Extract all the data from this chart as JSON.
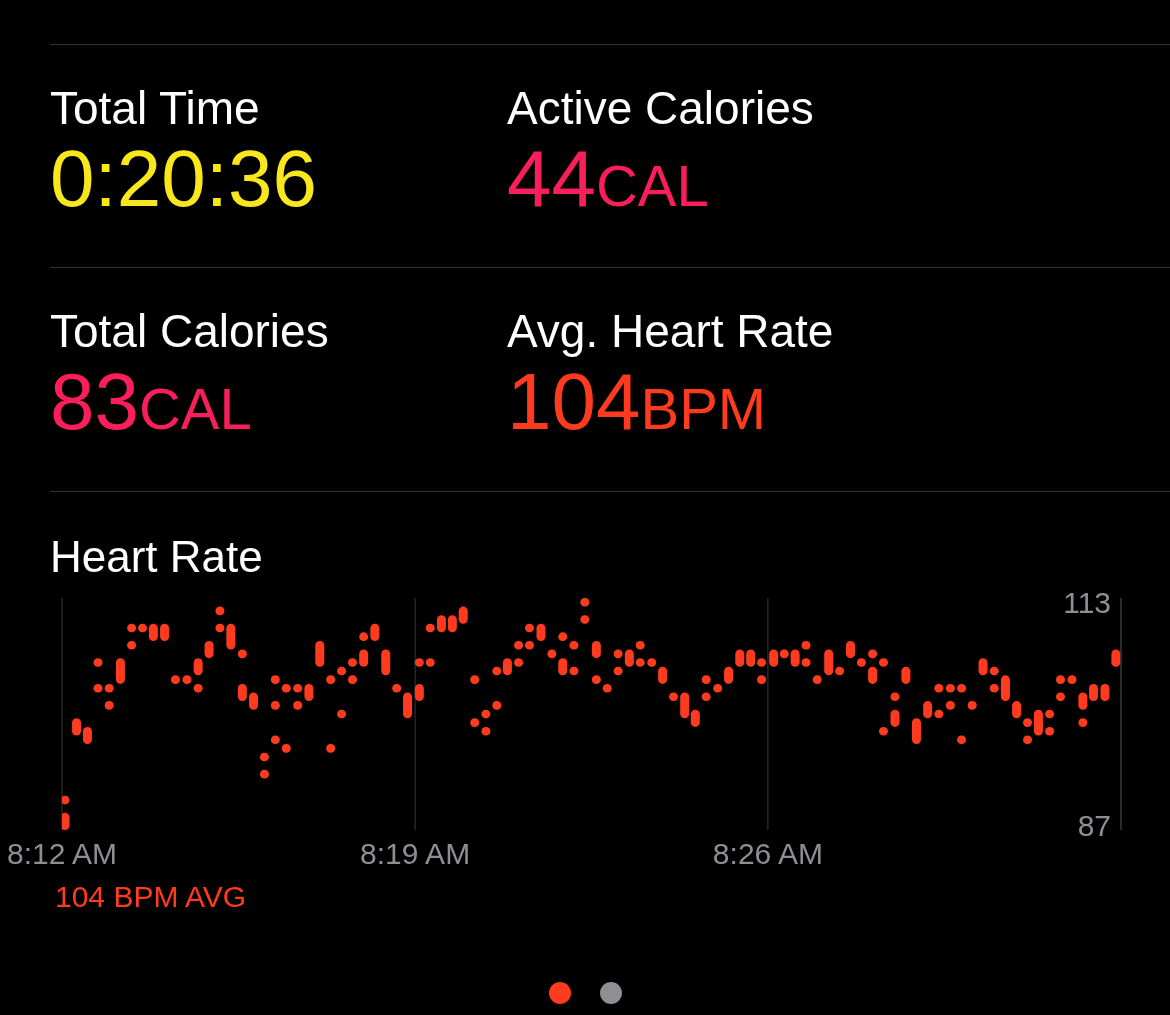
{
  "chart_data": [
    {
      "type": "other",
      "annotations": [
        "Total Time",
        "0:20:36",
        "Active Calories",
        "44CAL",
        "Total Calories",
        "83CAL",
        "Avg. Heart Rate",
        "104BPM"
      ],
      "colors": [
        "#f8e71c",
        "#fa1e5a",
        "#fa1e5a",
        "#ff3b1f"
      ]
    },
    {
      "type": "bar",
      "title": "Heart Rate",
      "annotations": [
        "104 BPM AVG"
      ],
      "xlim": [
        8.2,
        8.55
      ],
      "xticks": [
        {
          "value": 8.2,
          "label": "8:12 AM"
        },
        {
          "value": 8.3167,
          "label": "8:19 AM"
        },
        {
          "value": 8.4333,
          "label": "8:26 AM"
        }
      ],
      "ylim": [
        86.5,
        113.5
      ],
      "yticks": [
        87,
        113
      ],
      "grid": "x",
      "series": [
        {
          "color": "#ff3b1f",
          "x": [
            8.2011,
            8.2049,
            8.2085,
            8.212,
            8.2157,
            8.2194,
            8.2231,
            8.2267,
            8.2303,
            8.234,
            8.2376,
            8.2414,
            8.2451,
            8.2487,
            8.2523,
            8.2559,
            8.2597,
            8.2634,
            8.267,
            8.2706,
            8.2742,
            8.278,
            8.2817,
            8.2853,
            8.2889,
            8.2925,
            8.2961,
            8.2998,
            8.3035,
            8.3071,
            8.3107,
            8.3143,
            8.3182,
            8.3218,
            8.3255,
            8.3291,
            8.3327,
            8.3365,
            8.3402,
            8.3438,
            8.3473,
            8.351,
            8.3546,
            8.3584,
            8.362,
            8.3656,
            8.3693,
            8.3729,
            8.3767,
            8.3803,
            8.3839,
            8.3876,
            8.3912,
            8.395,
            8.3986,
            8.4022,
            8.4059,
            8.4094,
            8.413,
            8.4168,
            8.4204,
            8.4241,
            8.4277,
            8.4313,
            8.4353,
            8.4388,
            8.4424,
            8.446,
            8.4497,
            8.4535,
            8.4571,
            8.4607,
            8.4643,
            8.468,
            8.4716,
            8.4754,
            8.479,
            8.4825,
            8.4862,
            8.4899,
            8.4937,
            8.4974,
            8.5009,
            8.5045,
            8.5082,
            8.5119,
            8.5156,
            8.5192,
            8.5228,
            8.5265,
            8.5301,
            8.5339,
            8.5375,
            8.541,
            8.5448,
            8.5484
          ],
          "base": [
            89.5,
            97.5,
            96.5,
            105.5,
            102.5,
            103.5,
            109.5,
            109.5,
            108.5,
            108.5,
            103.5,
            103.5,
            104.5,
            106.5,
            111.5,
            107.5,
            106.5,
            100.5,
            94.5,
            103.5,
            102.5,
            102.5,
            101.5,
            105.5,
            103.5,
            104.5,
            105.5,
            108.5,
            108.5,
            104.5,
            102.5,
            99.5,
            105.5,
            109.5,
            109.5,
            109.5,
            110.5,
            103.5,
            99.5,
            104.5,
            104.5,
            107.5,
            109.5,
            108.5,
            106.5,
            108.5,
            107.5,
            112.5,
            106.5,
            102.5,
            106.5,
            105.5,
            107.5,
            105.5,
            103.5,
            101.5,
            99.5,
            98.5,
            103.5,
            102.5,
            103.5,
            105.5,
            105.5,
            105.5,
            105.5,
            106.5,
            105.5,
            107.5,
            103.5,
            104.5,
            104.5,
            106.5,
            105.5,
            106.5,
            105.5,
            101.5,
            103.5,
            96.5,
            99.5,
            102.5,
            102.5,
            102.5,
            100.5,
            104.5,
            104.5,
            101.5,
            99.5,
            98.5,
            97.5,
            99.5,
            103.5,
            103.5,
            100.5,
            101.5,
            101.5,
            105.5
          ],
          "values": [
            1,
            2,
            2,
            1,
            1,
            3,
            1,
            1,
            2,
            2,
            1,
            1,
            2,
            2,
            1,
            3,
            1,
            2,
            1,
            1,
            1,
            1,
            2,
            3,
            1,
            1,
            1,
            1,
            2,
            3,
            1,
            3,
            1,
            1,
            2,
            2,
            2,
            1,
            1,
            1,
            2,
            1,
            1,
            2,
            1,
            1,
            1,
            1,
            2,
            1,
            1,
            2,
            1,
            1,
            2,
            1,
            3,
            2,
            1,
            1,
            2,
            2,
            2,
            1,
            2,
            1,
            2,
            1,
            1,
            3,
            1,
            2,
            1,
            1,
            1,
            1,
            2,
            3,
            2,
            1,
            1,
            1,
            1,
            2,
            1,
            3,
            2,
            1,
            3,
            1,
            1,
            1,
            2,
            2,
            2,
            2
          ]
        },
        {
          "color": "#ff3b1f",
          "x": [
            8.2011,
            8.212,
            8.2157,
            8.2231,
            8.2451,
            8.2523,
            8.2597,
            8.267,
            8.2706,
            8.2742,
            8.278,
            8.2889,
            8.2925,
            8.2961,
            8.2998,
            8.3182,
            8.3218,
            8.3365,
            8.3402,
            8.3438,
            8.351,
            8.3546,
            8.3656,
            8.3693,
            8.3729,
            8.3767,
            8.3839,
            8.3912,
            8.413,
            8.4313,
            8.446,
            8.468,
            8.4716,
            8.4754,
            8.4899,
            8.4937,
            8.4974,
            8.5082,
            8.5192,
            8.5265,
            8.5301,
            8.5375
          ],
          "base": [
            86.5,
            102.5,
            100.5,
            107.5,
            102.5,
            109.5,
            101.5,
            92.5,
            100.5,
            95.5,
            100.5,
            95.5,
            99.5,
            103.5,
            105.5,
            101.5,
            105.5,
            98.5,
            97.5,
            100.5,
            105.5,
            107.5,
            104.5,
            104.5,
            110.5,
            103.5,
            104.5,
            105.5,
            101.5,
            103.5,
            105.5,
            103.5,
            97.5,
            98.5,
            99.5,
            100.5,
            96.5,
            102.5,
            96.5,
            97.5,
            101.5,
            98.5
          ],
          "values": [
            2,
            1,
            1,
            1,
            1,
            1,
            2,
            1,
            1,
            1,
            1,
            1,
            1,
            1,
            2,
            2,
            1,
            1,
            1,
            1,
            1,
            1,
            2,
            1,
            1,
            1,
            1,
            1,
            1,
            1,
            1,
            2,
            1,
            2,
            1,
            1,
            1,
            1,
            1,
            1,
            1,
            1
          ]
        },
        {
          "color": "#ff3b1f",
          "x": [
            8.2706
          ],
          "base": [
            96.5
          ],
          "values": [
            1
          ]
        }
      ]
    }
  ]
}
